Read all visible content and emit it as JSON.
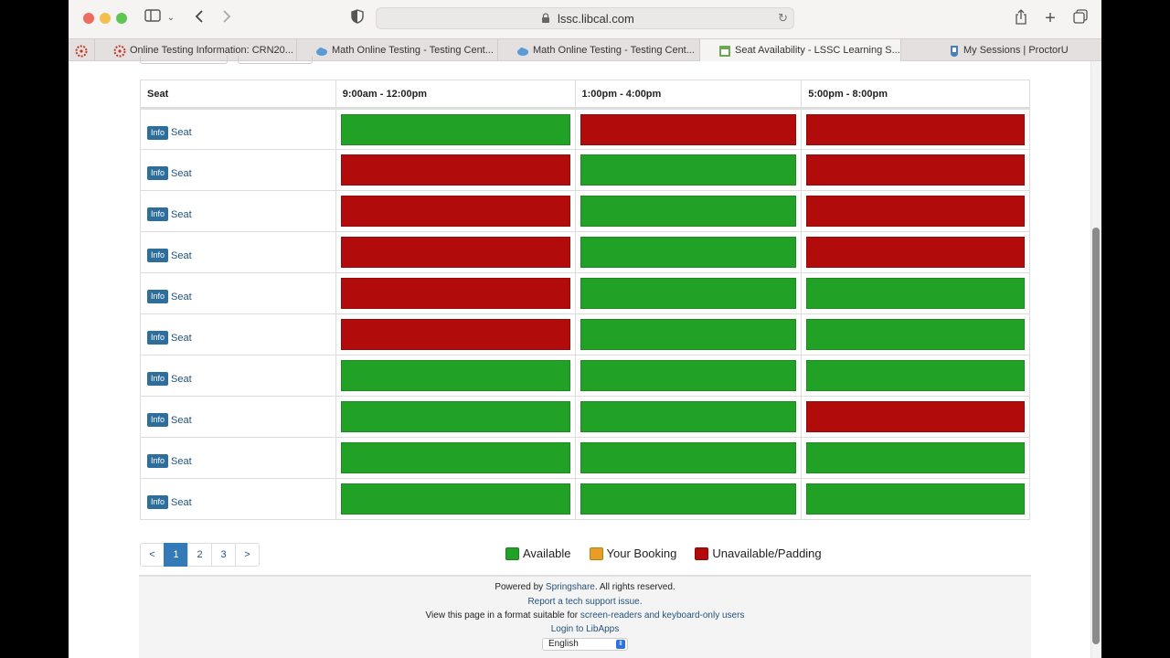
{
  "browser": {
    "url": "lssc.libcal.com",
    "tabs": [
      {
        "label": "Online Testing Information: CRN20...",
        "icon": "canvas-icon",
        "color": "#c0392b"
      },
      {
        "label": "Math Online Testing - Testing Cent...",
        "icon": "cloud-icon",
        "color": "#5b9bd5"
      },
      {
        "label": "Math Online Testing - Testing Cent...",
        "icon": "cloud-icon",
        "color": "#5b9bd5"
      },
      {
        "label": "Seat Availability - LSSC Learning S...",
        "icon": "calendar-icon",
        "color": "#6aa84f"
      },
      {
        "label": "My Sessions | ProctorU",
        "icon": "proctoru-icon",
        "color": "#4a7fb5"
      }
    ]
  },
  "table": {
    "headers": [
      "Seat",
      "9:00am - 12:00pm",
      "1:00pm - 4:00pm",
      "5:00pm - 8:00pm"
    ],
    "info_label": "Info",
    "seat_label": "Seat",
    "rows": [
      [
        "available",
        "unavailable",
        "unavailable"
      ],
      [
        "unavailable",
        "available",
        "unavailable"
      ],
      [
        "unavailable",
        "available",
        "unavailable"
      ],
      [
        "unavailable",
        "available",
        "unavailable"
      ],
      [
        "unavailable",
        "available",
        "available"
      ],
      [
        "unavailable",
        "available",
        "available"
      ],
      [
        "available",
        "available",
        "available"
      ],
      [
        "available",
        "available",
        "unavailable"
      ],
      [
        "available",
        "available",
        "available"
      ],
      [
        "available",
        "available",
        "available"
      ]
    ]
  },
  "pagination": {
    "prev": "<",
    "pages": [
      "1",
      "2",
      "3"
    ],
    "next": ">",
    "current": "1"
  },
  "legend": [
    {
      "label": "Available",
      "color": "#22a127"
    },
    {
      "label": "Your Booking",
      "color": "#e89e24"
    },
    {
      "label": "Unavailable/Padding",
      "color": "#b20b0b"
    }
  ],
  "footer": {
    "powered_prefix": "Powered by ",
    "powered_link": "Springshare",
    "powered_suffix": ". All rights reserved.",
    "report_link": "Report a tech support issue.",
    "view_prefix": "View this page in a format suitable for ",
    "view_link": "screen-readers and keyboard-only users",
    "login_link": "Login to LibApps",
    "language": "English"
  }
}
